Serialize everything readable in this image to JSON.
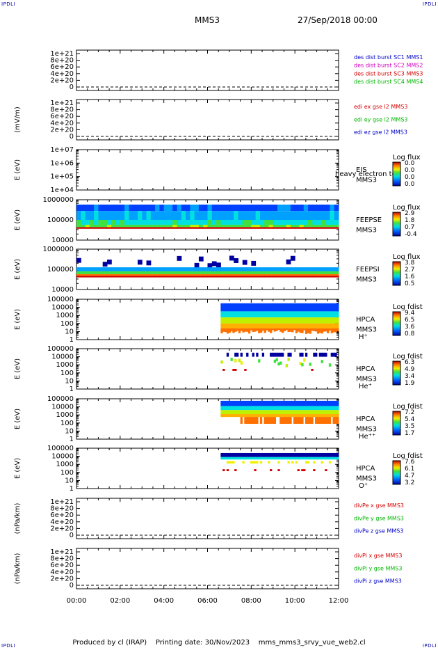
{
  "corner_label": "IPDLI",
  "header": {
    "spacecraft": "MMS3",
    "datetime": "27/Sep/2018 00:00"
  },
  "footer": {
    "produced": "Produced by cl (IRAP)",
    "printing": "Printing date: 30/Nov/2023",
    "file": "mms_mms3_srvy_vue_web2.cl"
  },
  "colors": {
    "mms1": "#0000c8",
    "mms2": "#d000c0",
    "mms3": "#d40000",
    "mms4": "#00b400",
    "x": "#d40000",
    "y": "#00b400",
    "z": "#0000c8"
  },
  "chart_data": [
    {
      "type": "line",
      "name": "des-dist",
      "ylabel": "",
      "yticks": [
        "1e+21",
        "8e+20",
        "6e+20",
        "4e+20",
        "2e+20",
        "0"
      ],
      "ylim": [
        0,
        1e+21
      ],
      "legend": [
        {
          "text": "des dist burst SC1 MMS1",
          "color": "#0000c8"
        },
        {
          "text": "des dist burst SC2 MMS2",
          "color": "#d000c0"
        },
        {
          "text": "des dist burst SC3 MMS3",
          "color": "#d40000"
        },
        {
          "text": "des dist burst SC4 MMS4",
          "color": "#00b400"
        }
      ],
      "zero_line": true
    },
    {
      "type": "line",
      "name": "edi-e",
      "ylabel": "(mV/m)",
      "yticks": [
        "1e+21",
        "8e+20",
        "6e+20",
        "4e+20",
        "2e+20",
        "0"
      ],
      "ylim": [
        0,
        1e+21
      ],
      "legend": [
        {
          "text": "edi ex gse l2 MMS3",
          "color": "#d40000"
        },
        {
          "text": "edi ey gse l2 MMS3",
          "color": "#00b400"
        },
        {
          "text": "edi ez gse l2 MMS3",
          "color": "#0000c8"
        }
      ],
      "zero_line": true
    },
    {
      "type": "heatmap",
      "name": "eis",
      "ylabel": "E (eV)",
      "yticks": [
        "1e+07",
        "1e+06",
        "1e+05",
        "1e+04"
      ],
      "labels": [
        "EIS",
        "MMS3"
      ],
      "overlay": "heavy electron to",
      "colorbar": {
        "title": "Log flux",
        "ticks": [
          "0.0",
          "0.0",
          "0.0",
          "0.0"
        ]
      },
      "data_window": null
    },
    {
      "type": "heatmap",
      "name": "feepse",
      "ylabel": "E (eV)",
      "yticks": [
        "1000000",
        "100000",
        "10000"
      ],
      "labels": [
        "FEEPSE",
        "MMS3"
      ],
      "colorbar": {
        "title": "Log flux",
        "ticks": [
          "2.9",
          "1.8",
          "0.7",
          "-0.4"
        ]
      },
      "data_window": [
        0,
        12
      ]
    },
    {
      "type": "heatmap",
      "name": "feepsi",
      "ylabel": "E (eV)",
      "yticks": [
        "1000000",
        "100000",
        "10000"
      ],
      "labels": [
        "FEEPSI",
        "MMS3"
      ],
      "colorbar": {
        "title": "Log flux",
        "ticks": [
          "3.8",
          "2.7",
          "1.6",
          "0.5"
        ]
      },
      "data_window": [
        0,
        12
      ]
    },
    {
      "type": "heatmap",
      "name": "hpca-h",
      "ylabel": "E (eV)",
      "yticks": [
        "100000",
        "10000",
        "1000",
        "100",
        "10",
        "1"
      ],
      "labels": [
        "HPCA",
        "MMS3",
        "H⁺"
      ],
      "colorbar": {
        "title": "Log fdist",
        "ticks": [
          "9.4",
          "6.5",
          "3.6",
          "0.8"
        ]
      },
      "data_window": [
        6.6,
        12
      ]
    },
    {
      "type": "heatmap",
      "name": "hpca-he",
      "ylabel": "E (eV)",
      "yticks": [
        "100000",
        "10000",
        "1000",
        "100",
        "10",
        "1"
      ],
      "labels": [
        "HPCA",
        "MMS3",
        "He⁺"
      ],
      "colorbar": {
        "title": "Log fdist",
        "ticks": [
          "6.3",
          "4.9",
          "3.4",
          "1.9"
        ]
      },
      "data_window": [
        6.6,
        12
      ]
    },
    {
      "type": "heatmap",
      "name": "hpca-hepp",
      "ylabel": "E (eV)",
      "yticks": [
        "100000",
        "10000",
        "1000",
        "100",
        "10",
        "1"
      ],
      "labels": [
        "HPCA",
        "MMS3",
        "He⁺⁺"
      ],
      "colorbar": {
        "title": "Log fdist",
        "ticks": [
          "7.2",
          "5.4",
          "3.5",
          "1.7"
        ]
      },
      "data_window": [
        6.6,
        12
      ]
    },
    {
      "type": "heatmap",
      "name": "hpca-o",
      "ylabel": "E (eV)",
      "yticks": [
        "100000",
        "10000",
        "1000",
        "100",
        "10",
        "1"
      ],
      "labels": [
        "HPCA",
        "MMS3",
        "O⁺"
      ],
      "colorbar": {
        "title": "Log fdist",
        "ticks": [
          "7.6",
          "6.1",
          "4.7",
          "3.2"
        ]
      },
      "data_window": [
        6.6,
        12
      ]
    },
    {
      "type": "line",
      "name": "divpe",
      "ylabel": "(nPa/km)",
      "yticks": [
        "1e+21",
        "8e+20",
        "6e+20",
        "4e+20",
        "2e+20",
        "0"
      ],
      "ylim": [
        0,
        1e+21
      ],
      "legend": [
        {
          "text": "divPe x gse MMS3",
          "color": "#d40000"
        },
        {
          "text": "divPe y gse MMS3",
          "color": "#00b400"
        },
        {
          "text": "divPe z gse MMS3",
          "color": "#0000c8"
        }
      ],
      "zero_line": true
    },
    {
      "type": "line",
      "name": "divpi",
      "ylabel": "(nPa/km)",
      "yticks": [
        "1e+21",
        "8e+20",
        "6e+20",
        "4e+20",
        "2e+20",
        "0"
      ],
      "ylim": [
        0,
        1e+21
      ],
      "legend": [
        {
          "text": "divPi x gse MMS3",
          "color": "#d40000"
        },
        {
          "text": "divPi y gse MMS3",
          "color": "#00b400"
        },
        {
          "text": "divPi z gse MMS3",
          "color": "#0000c8"
        }
      ],
      "zero_line": true
    }
  ],
  "x_axis": {
    "ticks": [
      "00:00",
      "02:00",
      "04:00",
      "06:00",
      "08:00",
      "10:00",
      "12:00"
    ],
    "range_hours": [
      0,
      12
    ]
  }
}
